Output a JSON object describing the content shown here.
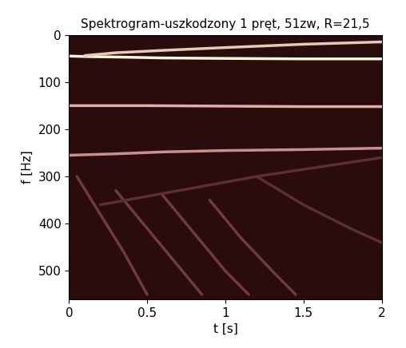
{
  "chart_data": {
    "type": "spectrogram",
    "title": "Spektrogram-uszkodzony 1 pręt, 51zw, R=21,5",
    "x_label": "t [s]",
    "y_label": "f [Hz]",
    "xlim": [
      0,
      2
    ],
    "ylim": [
      560,
      0
    ],
    "xticks": [
      0,
      0.5,
      1,
      1.5,
      2
    ],
    "yticks": [
      0,
      100,
      200,
      300,
      400,
      500
    ],
    "color": "#2a0c0c",
    "ridges": [
      {
        "color": "#fff4dc",
        "x": [
          0,
          0.1,
          0.3,
          0.6,
          1.0,
          1.5,
          2.0
        ],
        "values": [
          45,
          46,
          47,
          49,
          50,
          51,
          51
        ]
      },
      {
        "color": "#e8c8b8",
        "x": [
          0.1,
          0.3,
          0.6,
          1.0,
          1.5,
          2.0
        ],
        "values": [
          44,
          38,
          33,
          27,
          20,
          15
        ]
      },
      {
        "color": "#e0b0a8",
        "x": [
          0,
          0.5,
          1.0,
          1.5,
          2.0
        ],
        "values": [
          150,
          150,
          151,
          152,
          152
        ]
      },
      {
        "color": "#c89090",
        "x": [
          0,
          0.3,
          0.6,
          1.0,
          1.5,
          2.0
        ],
        "values": [
          255,
          252,
          248,
          245,
          243,
          240
        ]
      },
      {
        "color": "#6e3c3c",
        "x": [
          0.05,
          0.2,
          0.35,
          0.5
        ],
        "values": [
          300,
          380,
          460,
          550
        ]
      },
      {
        "color": "#6e3c3c",
        "x": [
          0.3,
          0.5,
          0.7,
          0.85
        ],
        "values": [
          330,
          410,
          490,
          550
        ]
      },
      {
        "color": "#6e3c3c",
        "x": [
          0.6,
          0.8,
          1.0,
          1.15
        ],
        "values": [
          340,
          420,
          500,
          550
        ]
      },
      {
        "color": "#6e3c3c",
        "x": [
          0.9,
          1.1,
          1.3,
          1.45
        ],
        "values": [
          350,
          430,
          500,
          550
        ]
      },
      {
        "color": "#5a3030",
        "x": [
          1.2,
          1.5,
          1.8,
          2.0
        ],
        "values": [
          300,
          360,
          410,
          440
        ]
      },
      {
        "color": "#5a3030",
        "x": [
          0.2,
          0.7,
          1.2,
          1.7,
          2.0
        ],
        "values": [
          360,
          330,
          300,
          275,
          260
        ]
      }
    ]
  }
}
